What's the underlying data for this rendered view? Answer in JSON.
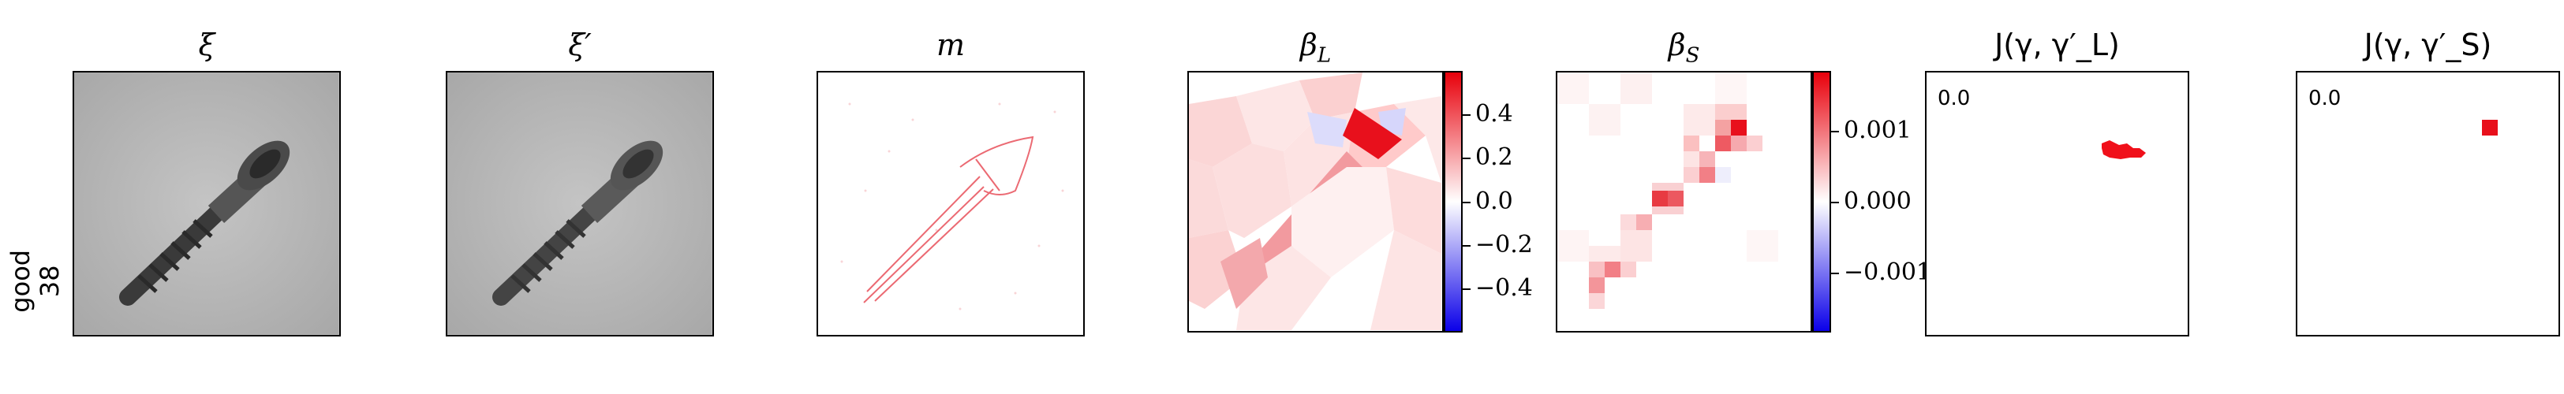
{
  "row_label": [
    "good",
    "38"
  ],
  "titles": {
    "xi": "ξ",
    "xi_prime": "ξ′",
    "m": "m",
    "beta_l": "β_L",
    "beta_s": "β_S",
    "j_l": "J(γ, γ′_L)",
    "j_s": "J(γ, γ′_S)"
  },
  "colorbar_l": {
    "ticks": [
      "0.4",
      "0.2",
      "0.0",
      "−0.2",
      "−0.4"
    ],
    "range": [
      -0.55,
      0.55
    ]
  },
  "colorbar_s": {
    "ticks": [
      "0.001",
      "0.000",
      "−0.001"
    ],
    "range": [
      -0.0018,
      0.0018
    ]
  },
  "j_values": {
    "j_l": "0.0",
    "j_s": "0.0"
  },
  "colors": {
    "positive": "#e8000b",
    "negative": "#0b00e8",
    "neutral": "#ffffff"
  }
}
